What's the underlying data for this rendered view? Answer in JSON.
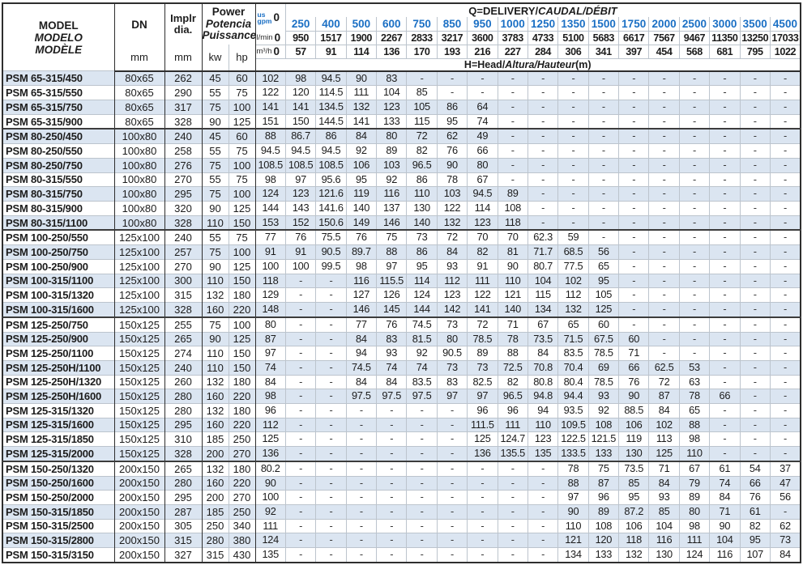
{
  "colors": {
    "accent_blue": "#1a6fc4",
    "row_alt": "#dbe5f1",
    "border_dark": "#2e2e2e",
    "border_light": "#bcc4cd"
  },
  "header": {
    "model_en": "MODEL",
    "model_es": "MODELO",
    "model_fr": "MODÈLE",
    "dn_label": "DN",
    "implr_line1": "Implr",
    "implr_line2": "dia.",
    "power_en": "Power",
    "power_es": "Potencia",
    "power_fr": "Puissance",
    "mm_unit": "mm",
    "kw_unit": "kw",
    "hp_unit": "hp",
    "q_title_en": "Q=DELIVERY/",
    "q_title_intl": "CAUDAL/DÉBIT",
    "us_label": "us",
    "gpm_label": "gpm",
    "lmin_label": "l/min",
    "m3h_label": "m³/h",
    "zero": "0",
    "gpm_values": [
      "250",
      "400",
      "500",
      "600",
      "750",
      "850",
      "950",
      "1000",
      "1250",
      "1350",
      "1500",
      "1750",
      "2000",
      "2500",
      "3000",
      "3500",
      "4500"
    ],
    "lmin_values": [
      "950",
      "1517",
      "1900",
      "2267",
      "2833",
      "3217",
      "3600",
      "3783",
      "4733",
      "5100",
      "5683",
      "6617",
      "7567",
      "9467",
      "11350",
      "13250",
      "17033"
    ],
    "m3h_values": [
      "57",
      "91",
      "114",
      "136",
      "170",
      "193",
      "216",
      "227",
      "284",
      "306",
      "341",
      "397",
      "454",
      "568",
      "681",
      "795",
      "1022"
    ],
    "head_label_en": "H=Head/",
    "head_label_intl": "Altura/Hauteur",
    "head_label_unit": "(m)"
  },
  "group_starts": [
    4,
    11,
    17,
    27
  ],
  "rows": [
    {
      "model": "PSM 65-315/450",
      "dn": "80x65",
      "impeller": "262",
      "kw": "45",
      "hp": "60",
      "heads": [
        "102",
        "98",
        "94.5",
        "90",
        "83",
        "-",
        "-",
        "-",
        "-",
        "-",
        "-",
        "-",
        "-",
        "-",
        "-",
        "-",
        "-",
        "-"
      ]
    },
    {
      "model": "PSM 65-315/550",
      "dn": "80x65",
      "impeller": "290",
      "kw": "55",
      "hp": "75",
      "heads": [
        "122",
        "120",
        "114.5",
        "111",
        "104",
        "85",
        "-",
        "-",
        "-",
        "-",
        "-",
        "-",
        "-",
        "-",
        "-",
        "-",
        "-",
        "-"
      ]
    },
    {
      "model": "PSM 65-315/750",
      "dn": "80x65",
      "impeller": "317",
      "kw": "75",
      "hp": "100",
      "heads": [
        "141",
        "141",
        "134.5",
        "132",
        "123",
        "105",
        "86",
        "64",
        "-",
        "-",
        "-",
        "-",
        "-",
        "-",
        "-",
        "-",
        "-",
        "-"
      ]
    },
    {
      "model": "PSM 65-315/900",
      "dn": "80x65",
      "impeller": "328",
      "kw": "90",
      "hp": "125",
      "heads": [
        "151",
        "150",
        "144.5",
        "141",
        "133",
        "115",
        "95",
        "74",
        "-",
        "-",
        "-",
        "-",
        "-",
        "-",
        "-",
        "-",
        "-",
        "-"
      ]
    },
    {
      "model": "PSM 80-250/450",
      "dn": "100x80",
      "impeller": "240",
      "kw": "45",
      "hp": "60",
      "heads": [
        "88",
        "86.7",
        "86",
        "84",
        "80",
        "72",
        "62",
        "49",
        "-",
        "-",
        "-",
        "-",
        "-",
        "-",
        "-",
        "-",
        "-",
        "-"
      ]
    },
    {
      "model": "PSM 80-250/550",
      "dn": "100x80",
      "impeller": "258",
      "kw": "55",
      "hp": "75",
      "heads": [
        "94.5",
        "94.5",
        "94.5",
        "92",
        "89",
        "82",
        "76",
        "66",
        "-",
        "-",
        "-",
        "-",
        "-",
        "-",
        "-",
        "-",
        "-",
        "-"
      ]
    },
    {
      "model": "PSM 80-250/750",
      "dn": "100x80",
      "impeller": "276",
      "kw": "75",
      "hp": "100",
      "heads": [
        "108.5",
        "108.5",
        "108.5",
        "106",
        "103",
        "96.5",
        "90",
        "80",
        "-",
        "-",
        "-",
        "-",
        "-",
        "-",
        "-",
        "-",
        "-",
        "-"
      ]
    },
    {
      "model": "PSM 80-315/550",
      "dn": "100x80",
      "impeller": "270",
      "kw": "55",
      "hp": "75",
      "heads": [
        "98",
        "97",
        "95.6",
        "95",
        "92",
        "86",
        "78",
        "67",
        "-",
        "-",
        "-",
        "-",
        "-",
        "-",
        "-",
        "-",
        "-",
        "-"
      ]
    },
    {
      "model": "PSM 80-315/750",
      "dn": "100x80",
      "impeller": "295",
      "kw": "75",
      "hp": "100",
      "heads": [
        "124",
        "123",
        "121.6",
        "119",
        "116",
        "110",
        "103",
        "94.5",
        "89",
        "-",
        "-",
        "-",
        "-",
        "-",
        "-",
        "-",
        "-",
        "-"
      ]
    },
    {
      "model": "PSM 80-315/900",
      "dn": "100x80",
      "impeller": "320",
      "kw": "90",
      "hp": "125",
      "heads": [
        "144",
        "143",
        "141.6",
        "140",
        "137",
        "130",
        "122",
        "114",
        "108",
        "-",
        "-",
        "-",
        "-",
        "-",
        "-",
        "-",
        "-",
        "-"
      ]
    },
    {
      "model": "PSM 80-315/1100",
      "dn": "100x80",
      "impeller": "328",
      "kw": "110",
      "hp": "150",
      "heads": [
        "153",
        "152",
        "150.6",
        "149",
        "146",
        "140",
        "132",
        "123",
        "118",
        "-",
        "-",
        "-",
        "-",
        "-",
        "-",
        "-",
        "-",
        "-"
      ]
    },
    {
      "model": "PSM 100-250/550",
      "dn": "125x100",
      "impeller": "240",
      "kw": "55",
      "hp": "75",
      "heads": [
        "77",
        "76",
        "75.5",
        "76",
        "75",
        "73",
        "72",
        "70",
        "70",
        "62.3",
        "59",
        "-",
        "-",
        "-",
        "-",
        "-",
        "-",
        "-"
      ]
    },
    {
      "model": "PSM 100-250/750",
      "dn": "125x100",
      "impeller": "257",
      "kw": "75",
      "hp": "100",
      "heads": [
        "91",
        "91",
        "90.5",
        "89.7",
        "88",
        "86",
        "84",
        "82",
        "81",
        "71.7",
        "68.5",
        "56",
        "-",
        "-",
        "-",
        "-",
        "-",
        "-"
      ]
    },
    {
      "model": "PSM 100-250/900",
      "dn": "125x100",
      "impeller": "270",
      "kw": "90",
      "hp": "125",
      "heads": [
        "100",
        "100",
        "99.5",
        "98",
        "97",
        "95",
        "93",
        "91",
        "90",
        "80.7",
        "77.5",
        "65",
        "-",
        "-",
        "-",
        "-",
        "-",
        "-"
      ]
    },
    {
      "model": "PSM 100-315/1100",
      "dn": "125x100",
      "impeller": "300",
      "kw": "110",
      "hp": "150",
      "heads": [
        "118",
        "-",
        "-",
        "116",
        "115.5",
        "114",
        "112",
        "111",
        "110",
        "104",
        "102",
        "95",
        "-",
        "-",
        "-",
        "-",
        "-",
        "-"
      ]
    },
    {
      "model": "PSM 100-315/1320",
      "dn": "125x100",
      "impeller": "315",
      "kw": "132",
      "hp": "180",
      "heads": [
        "129",
        "-",
        "-",
        "127",
        "126",
        "124",
        "123",
        "122",
        "121",
        "115",
        "112",
        "105",
        "-",
        "-",
        "-",
        "-",
        "-",
        "-"
      ]
    },
    {
      "model": "PSM 100-315/1600",
      "dn": "125x100",
      "impeller": "328",
      "kw": "160",
      "hp": "220",
      "heads": [
        "148",
        "-",
        "-",
        "146",
        "145",
        "144",
        "142",
        "141",
        "140",
        "134",
        "132",
        "125",
        "-",
        "-",
        "-",
        "-",
        "-",
        "-"
      ]
    },
    {
      "model": "PSM 125-250/750",
      "dn": "150x125",
      "impeller": "255",
      "kw": "75",
      "hp": "100",
      "heads": [
        "80",
        "-",
        "-",
        "77",
        "76",
        "74.5",
        "73",
        "72",
        "71",
        "67",
        "65",
        "60",
        "-",
        "-",
        "-",
        "-",
        "-",
        "-"
      ]
    },
    {
      "model": "PSM 125-250/900",
      "dn": "150x125",
      "impeller": "265",
      "kw": "90",
      "hp": "125",
      "heads": [
        "87",
        "-",
        "-",
        "84",
        "83",
        "81.5",
        "80",
        "78.5",
        "78",
        "73.5",
        "71.5",
        "67.5",
        "60",
        "-",
        "-",
        "-",
        "-",
        "-"
      ]
    },
    {
      "model": "PSM 125-250/1100",
      "dn": "150x125",
      "impeller": "274",
      "kw": "110",
      "hp": "150",
      "heads": [
        "97",
        "-",
        "-",
        "94",
        "93",
        "92",
        "90.5",
        "89",
        "88",
        "84",
        "83.5",
        "78.5",
        "71",
        "-",
        "-",
        "-",
        "-",
        "-"
      ]
    },
    {
      "model": "PSM 125-250H/1100",
      "dn": "150x125",
      "impeller": "240",
      "kw": "110",
      "hp": "150",
      "heads": [
        "74",
        "-",
        "-",
        "74.5",
        "74",
        "74",
        "73",
        "73",
        "72.5",
        "70.8",
        "70.4",
        "69",
        "66",
        "62.5",
        "53",
        "-",
        "-",
        "-"
      ]
    },
    {
      "model": "PSM 125-250H/1320",
      "dn": "150x125",
      "impeller": "260",
      "kw": "132",
      "hp": "180",
      "heads": [
        "84",
        "-",
        "-",
        "84",
        "84",
        "83.5",
        "83",
        "82.5",
        "82",
        "80.8",
        "80.4",
        "78.5",
        "76",
        "72",
        "63",
        "-",
        "-",
        "-"
      ]
    },
    {
      "model": "PSM 125-250H/1600",
      "dn": "150x125",
      "impeller": "280",
      "kw": "160",
      "hp": "220",
      "heads": [
        "98",
        "-",
        "-",
        "97.5",
        "97.5",
        "97.5",
        "97",
        "97",
        "96.5",
        "94.8",
        "94.4",
        "93",
        "90",
        "87",
        "78",
        "66",
        "-",
        "-"
      ]
    },
    {
      "model": "PSM 125-315/1320",
      "dn": "150x125",
      "impeller": "280",
      "kw": "132",
      "hp": "180",
      "heads": [
        "96",
        "-",
        "-",
        "-",
        "-",
        "-",
        "-",
        "96",
        "96",
        "94",
        "93.5",
        "92",
        "88.5",
        "84",
        "65",
        "-",
        "-",
        "-"
      ]
    },
    {
      "model": "PSM 125-315/1600",
      "dn": "150x125",
      "impeller": "295",
      "kw": "160",
      "hp": "220",
      "heads": [
        "112",
        "-",
        "-",
        "-",
        "-",
        "-",
        "-",
        "111.5",
        "111",
        "110",
        "109.5",
        "108",
        "106",
        "102",
        "88",
        "-",
        "-",
        "-"
      ]
    },
    {
      "model": "PSM 125-315/1850",
      "dn": "150x125",
      "impeller": "310",
      "kw": "185",
      "hp": "250",
      "heads": [
        "125",
        "-",
        "-",
        "-",
        "-",
        "-",
        "-",
        "125",
        "124.7",
        "123",
        "122.5",
        "121.5",
        "119",
        "113",
        "98",
        "-",
        "-",
        "-"
      ]
    },
    {
      "model": "PSM 125-315/2000",
      "dn": "150x125",
      "impeller": "328",
      "kw": "200",
      "hp": "270",
      "heads": [
        "136",
        "-",
        "-",
        "-",
        "-",
        "-",
        "-",
        "136",
        "135.5",
        "135",
        "133.5",
        "133",
        "130",
        "125",
        "110",
        "-",
        "-",
        "-"
      ]
    },
    {
      "model": "PSM 150-250/1320",
      "dn": "200x150",
      "impeller": "265",
      "kw": "132",
      "hp": "180",
      "heads": [
        "80.2",
        "-",
        "-",
        "-",
        "-",
        "-",
        "-",
        "-",
        "-",
        "-",
        "78",
        "75",
        "73.5",
        "71",
        "67",
        "61",
        "54",
        "37"
      ]
    },
    {
      "model": "PSM 150-250/1600",
      "dn": "200x150",
      "impeller": "280",
      "kw": "160",
      "hp": "220",
      "heads": [
        "90",
        "-",
        "-",
        "-",
        "-",
        "-",
        "-",
        "-",
        "-",
        "-",
        "88",
        "87",
        "85",
        "84",
        "79",
        "74",
        "66",
        "47"
      ]
    },
    {
      "model": "PSM 150-250/2000",
      "dn": "200x150",
      "impeller": "295",
      "kw": "200",
      "hp": "270",
      "heads": [
        "100",
        "-",
        "-",
        "-",
        "-",
        "-",
        "-",
        "-",
        "-",
        "-",
        "97",
        "96",
        "95",
        "93",
        "89",
        "84",
        "76",
        "56"
      ]
    },
    {
      "model": "PSM 150-315/1850",
      "dn": "200x150",
      "impeller": "287",
      "kw": "185",
      "hp": "250",
      "heads": [
        "92",
        "-",
        "-",
        "-",
        "-",
        "-",
        "-",
        "-",
        "-",
        "-",
        "90",
        "89",
        "87.2",
        "85",
        "80",
        "71",
        "61",
        "-"
      ]
    },
    {
      "model": "PSM 150-315/2500",
      "dn": "200x150",
      "impeller": "305",
      "kw": "250",
      "hp": "340",
      "heads": [
        "111",
        "-",
        "-",
        "-",
        "-",
        "-",
        "-",
        "-",
        "-",
        "-",
        "110",
        "108",
        "106",
        "104",
        "98",
        "90",
        "82",
        "62"
      ]
    },
    {
      "model": "PSM 150-315/2800",
      "dn": "200x150",
      "impeller": "315",
      "kw": "280",
      "hp": "380",
      "heads": [
        "124",
        "-",
        "-",
        "-",
        "-",
        "-",
        "-",
        "-",
        "-",
        "-",
        "121",
        "120",
        "118",
        "116",
        "111",
        "104",
        "95",
        "73"
      ]
    },
    {
      "model": "PSM 150-315/3150",
      "dn": "200x150",
      "impeller": "327",
      "kw": "315",
      "hp": "430",
      "heads": [
        "135",
        "-",
        "-",
        "-",
        "-",
        "-",
        "-",
        "-",
        "-",
        "-",
        "134",
        "133",
        "132",
        "130",
        "124",
        "116",
        "107",
        "84"
      ]
    }
  ]
}
